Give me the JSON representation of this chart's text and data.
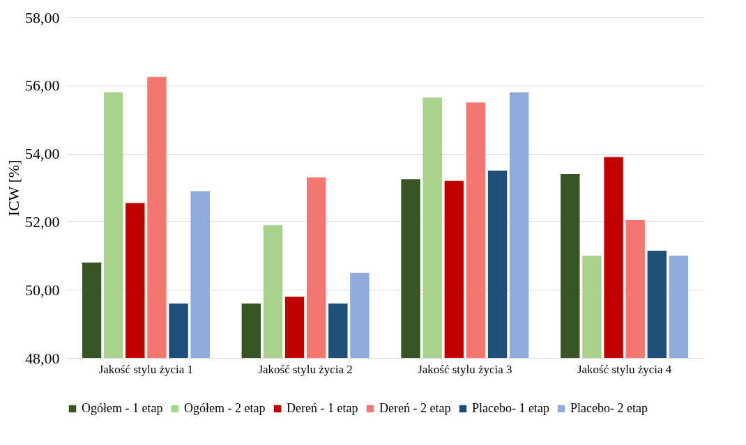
{
  "chart_data": {
    "type": "bar",
    "ylabel": "ICW [%]",
    "categories": [
      "Jakość stylu życia 1",
      "Jakość stylu życia 2",
      "Jakość stylu życia 3",
      "Jakość stylu życia 4"
    ],
    "series": [
      {
        "name": "Ogółem - 1 etap",
        "color": "#375623",
        "values": [
          50.8,
          49.6,
          53.25,
          53.4
        ]
      },
      {
        "name": "Ogółem - 2 etap",
        "color": "#a9d18e",
        "values": [
          55.8,
          51.9,
          55.65,
          51.0
        ]
      },
      {
        "name": "Dereń - 1 etap",
        "color": "#c00000",
        "values": [
          52.55,
          49.8,
          53.2,
          53.9
        ]
      },
      {
        "name": "Dereń - 2 etap",
        "color": "#f4766f",
        "values": [
          56.25,
          53.3,
          55.5,
          52.05
        ]
      },
      {
        "name": "Placebo- 1 etap",
        "color": "#1f4e79",
        "values": [
          49.6,
          49.6,
          53.5,
          51.15
        ]
      },
      {
        "name": "Placebo- 2 etap",
        "color": "#8faadc",
        "values": [
          52.9,
          50.5,
          55.8,
          51.0
        ]
      }
    ],
    "ylim": [
      48,
      58
    ],
    "yticks": [
      {
        "value": 48,
        "label": "48,00"
      },
      {
        "value": 50,
        "label": "50,00"
      },
      {
        "value": 52,
        "label": "52,00"
      },
      {
        "value": 54,
        "label": "54,00"
      },
      {
        "value": 56,
        "label": "56,00"
      },
      {
        "value": 58,
        "label": "58,00"
      }
    ],
    "grid": "y",
    "legend": "bottom"
  }
}
